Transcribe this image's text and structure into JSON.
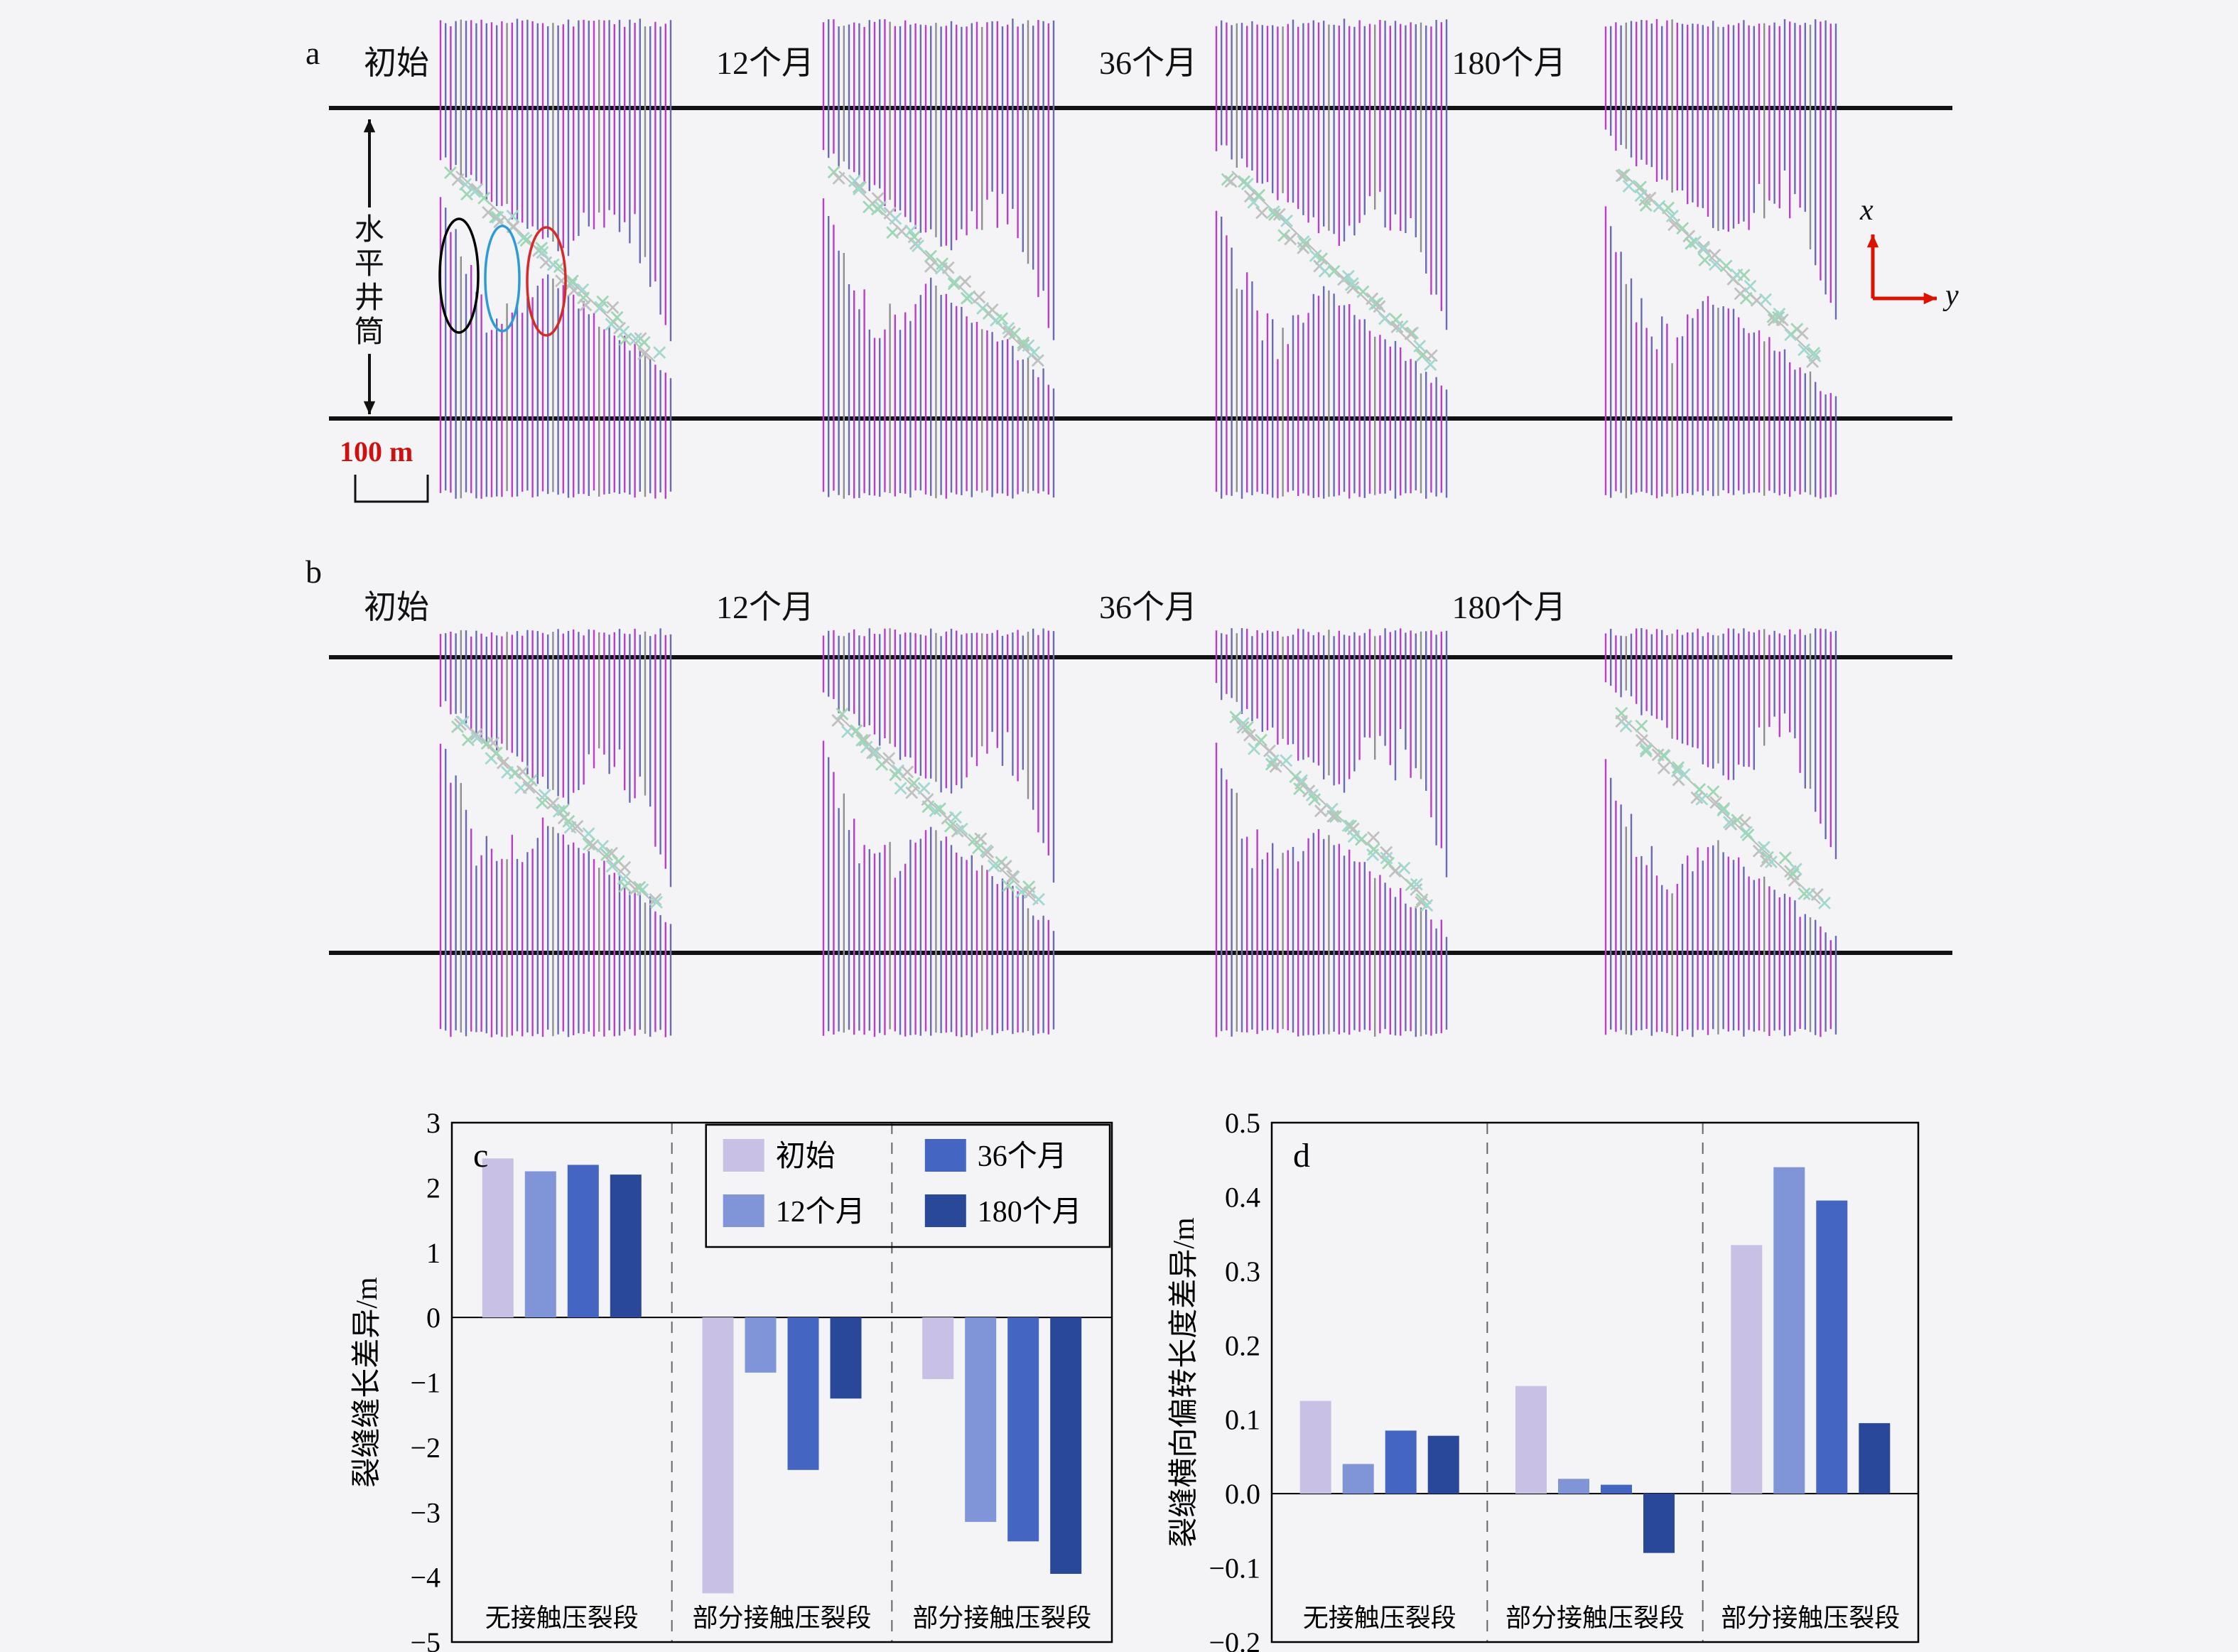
{
  "page": {
    "background": "#f4f4f6"
  },
  "panels": {
    "a": {
      "label": "a",
      "snapshot_titles": [
        "初始",
        "12个月",
        "36个月",
        "180个月"
      ],
      "wellbore_label": "水平井筒",
      "scale_label": "100 m",
      "axis": {
        "x": "x",
        "y": "y"
      },
      "annotation_ellipse_colors": [
        "#000000",
        "#2e9bd6",
        "#d42a2a"
      ]
    },
    "b": {
      "label": "b",
      "snapshot_titles": [
        "初始",
        "12个月",
        "36个月",
        "180个月"
      ]
    }
  },
  "sim_style": {
    "fracture_colors": [
      "#b93fc9",
      "#6b6bb4"
    ],
    "gray_fracture_color": "#8f8f8f",
    "marker_colors": [
      "#9fd6b4",
      "#c0c0c0",
      "#a2d8cf"
    ],
    "well_color": "#111111",
    "scale_color": "#cc1111",
    "axis_arrow_color": "#dd1100"
  },
  "chart_data": [
    {
      "id": "c",
      "type": "bar",
      "panel_label": "c",
      "ylabel": "裂缝缝长差异/m",
      "ylim": [
        -5,
        3
      ],
      "ytick_step": 1,
      "grid": false,
      "legend": true,
      "legend_position": "top-right-inside",
      "categories": [
        "无接触压裂段",
        "部分接触压裂段",
        "部分接触压裂段"
      ],
      "series": [
        {
          "name": "初始",
          "color": "#c9c0e6",
          "values": [
            2.45,
            -4.25,
            -0.95
          ]
        },
        {
          "name": "12个月",
          "color": "#8095d8",
          "values": [
            2.25,
            -0.85,
            -3.15
          ]
        },
        {
          "name": "36个月",
          "color": "#4565c2",
          "values": [
            2.35,
            -2.35,
            -3.45
          ]
        },
        {
          "name": "180个月",
          "color": "#2a4899",
          "values": [
            2.2,
            -1.25,
            -3.95
          ]
        }
      ]
    },
    {
      "id": "d",
      "type": "bar",
      "panel_label": "d",
      "ylabel": "裂缝横向偏转长度差异/m",
      "ylim": [
        -0.2,
        0.5
      ],
      "ytick_step": 0.1,
      "grid": false,
      "legend": false,
      "categories": [
        "无接触压裂段",
        "部分接触压裂段",
        "部分接触压裂段"
      ],
      "series": [
        {
          "name": "初始",
          "color": "#c9c0e6",
          "values": [
            0.125,
            0.145,
            0.335
          ]
        },
        {
          "name": "12个月",
          "color": "#8095d8",
          "values": [
            0.04,
            0.02,
            0.44
          ]
        },
        {
          "name": "36个月",
          "color": "#4565c2",
          "values": [
            0.085,
            0.012,
            0.395
          ]
        },
        {
          "name": "180个月",
          "color": "#2a4899",
          "values": [
            0.078,
            -0.08,
            0.095
          ]
        }
      ]
    }
  ]
}
